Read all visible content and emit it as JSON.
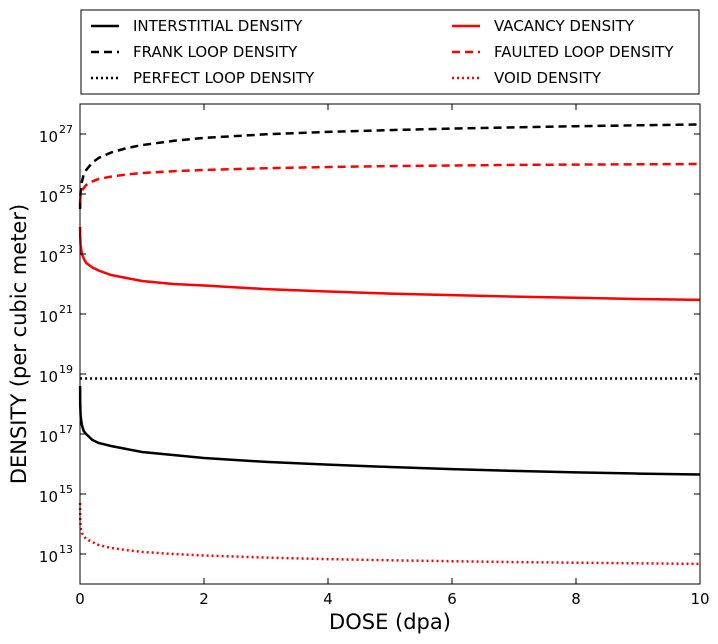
{
  "chart_data": {
    "type": "line",
    "xlabel": "DOSE (dpa)",
    "ylabel": "DENSITY (per cubic meter)",
    "xlim": [
      0,
      10
    ],
    "ylim_log10": [
      12,
      28
    ],
    "y_scale": "log",
    "grid": false,
    "legend_placement": "above plot, two columns",
    "x_ticks": [
      {
        "value": 0,
        "label": "0"
      },
      {
        "value": 2,
        "label": "2"
      },
      {
        "value": 4,
        "label": "4"
      },
      {
        "value": 6,
        "label": "6"
      },
      {
        "value": 8,
        "label": "8"
      },
      {
        "value": 10,
        "label": "10"
      }
    ],
    "y_ticks": [
      {
        "exp": 13,
        "base": "10",
        "sup": "13"
      },
      {
        "exp": 15,
        "base": "10",
        "sup": "15"
      },
      {
        "exp": 17,
        "base": "10",
        "sup": "17"
      },
      {
        "exp": 19,
        "base": "10",
        "sup": "19"
      },
      {
        "exp": 21,
        "base": "10",
        "sup": "21"
      },
      {
        "exp": 23,
        "base": "10",
        "sup": "23"
      },
      {
        "exp": 25,
        "base": "10",
        "sup": "25"
      },
      {
        "exp": 27,
        "base": "10",
        "sup": "27"
      }
    ],
    "x": [
      0.001,
      0.003,
      0.01,
      0.03,
      0.06,
      0.1,
      0.2,
      0.3,
      0.5,
      0.75,
      1,
      1.5,
      2,
      3,
      4,
      5,
      6,
      7,
      8,
      9,
      10
    ],
    "series": [
      {
        "name": "INTERSTITIAL DENSITY",
        "color": "#000000",
        "dash": "solid",
        "log10_values": [
          18.6,
          18.0,
          17.6,
          17.3,
          17.1,
          17.0,
          16.8,
          16.7,
          16.6,
          16.5,
          16.4,
          16.3,
          16.2,
          16.07,
          15.98,
          15.9,
          15.83,
          15.77,
          15.72,
          15.68,
          15.65
        ]
      },
      {
        "name": "FRANK LOOP DENSITY",
        "color": "#000000",
        "dash": "dashed",
        "log10_values": [
          24.5,
          24.8,
          25.1,
          25.4,
          25.65,
          25.8,
          26.05,
          26.2,
          26.38,
          26.53,
          26.63,
          26.77,
          26.87,
          26.99,
          27.07,
          27.13,
          27.18,
          27.22,
          27.26,
          27.29,
          27.32
        ]
      },
      {
        "name": "PERFECT LOOP DENSITY",
        "color": "#000000",
        "dash": "dotted",
        "log10_values": [
          18.85,
          18.85,
          18.85,
          18.85,
          18.85,
          18.85,
          18.85,
          18.85,
          18.85,
          18.85,
          18.85,
          18.85,
          18.85,
          18.85,
          18.85,
          18.85,
          18.85,
          18.85,
          18.85,
          18.85,
          18.85
        ]
      },
      {
        "name": "VACANCY DENSITY",
        "color": "#ff0000",
        "dash": "solid",
        "log10_values": [
          23.9,
          23.6,
          23.3,
          23.0,
          22.85,
          22.7,
          22.55,
          22.45,
          22.3,
          22.2,
          22.1,
          22.0,
          21.95,
          21.83,
          21.75,
          21.68,
          21.63,
          21.58,
          21.54,
          21.5,
          21.47
        ]
      },
      {
        "name": "FAULTED LOOP DENSITY",
        "color": "#ff0000",
        "dash": "dashed",
        "log10_values": [
          24.7,
          24.8,
          24.95,
          25.1,
          25.2,
          25.3,
          25.42,
          25.5,
          25.58,
          25.65,
          25.7,
          25.76,
          25.8,
          25.86,
          25.9,
          25.93,
          25.95,
          25.97,
          25.98,
          25.99,
          26.0
        ]
      },
      {
        "name": "VOID DENSITY",
        "color": "#ff0000",
        "dash": "dotted",
        "log10_values": [
          14.7,
          14.2,
          13.9,
          13.7,
          13.6,
          13.5,
          13.4,
          13.3,
          13.2,
          13.13,
          13.07,
          13.0,
          12.95,
          12.88,
          12.83,
          12.79,
          12.76,
          12.73,
          12.71,
          12.69,
          12.67
        ]
      }
    ]
  }
}
